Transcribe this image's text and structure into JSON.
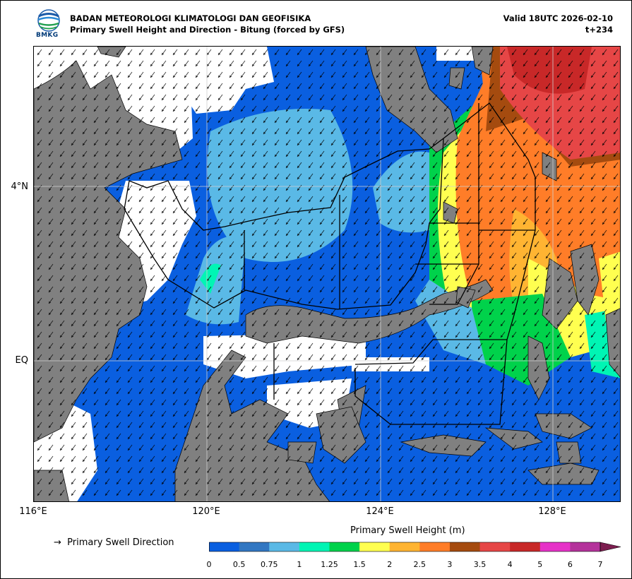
{
  "header": {
    "agency": "BADAN METEOROLOGI KLIMATOLOGI DAN GEOFISIKA",
    "product": "Primary Swell Height and Direction - Bitung (forced by GFS)",
    "valid": "Valid 18UTC 2026-02-10",
    "lead": "t+234",
    "logo_text": "BMKG",
    "logo_icon": "bmkg-logo-icon"
  },
  "map": {
    "lat_labels": [
      "4°N",
      "EQ"
    ],
    "lon_labels": [
      "116°E",
      "120°E",
      "124°E",
      "128°E"
    ],
    "land_color": "#808080",
    "nodata_color": "#ffffff",
    "prevailing_direction": "south-west"
  },
  "legend": {
    "arrow_glyph": "→",
    "direction_label": "Primary Swell Direction",
    "colorbar_title": "Primary Swell Height (m)",
    "ticks": [
      "0",
      "0.5",
      "0.75",
      "1",
      "1.25",
      "1.5",
      "2",
      "2.5",
      "3",
      "3.5",
      "4",
      "5",
      "6",
      "7"
    ],
    "colors": [
      "#0a5fe0",
      "#3277c2",
      "#5ab9e6",
      "#00f5b4",
      "#00d24b",
      "#ffff50",
      "#ffb432",
      "#ff7d28",
      "#a54b0f",
      "#e64646",
      "#c82828",
      "#e632c8",
      "#b4329b",
      "#7d1e50"
    ]
  }
}
